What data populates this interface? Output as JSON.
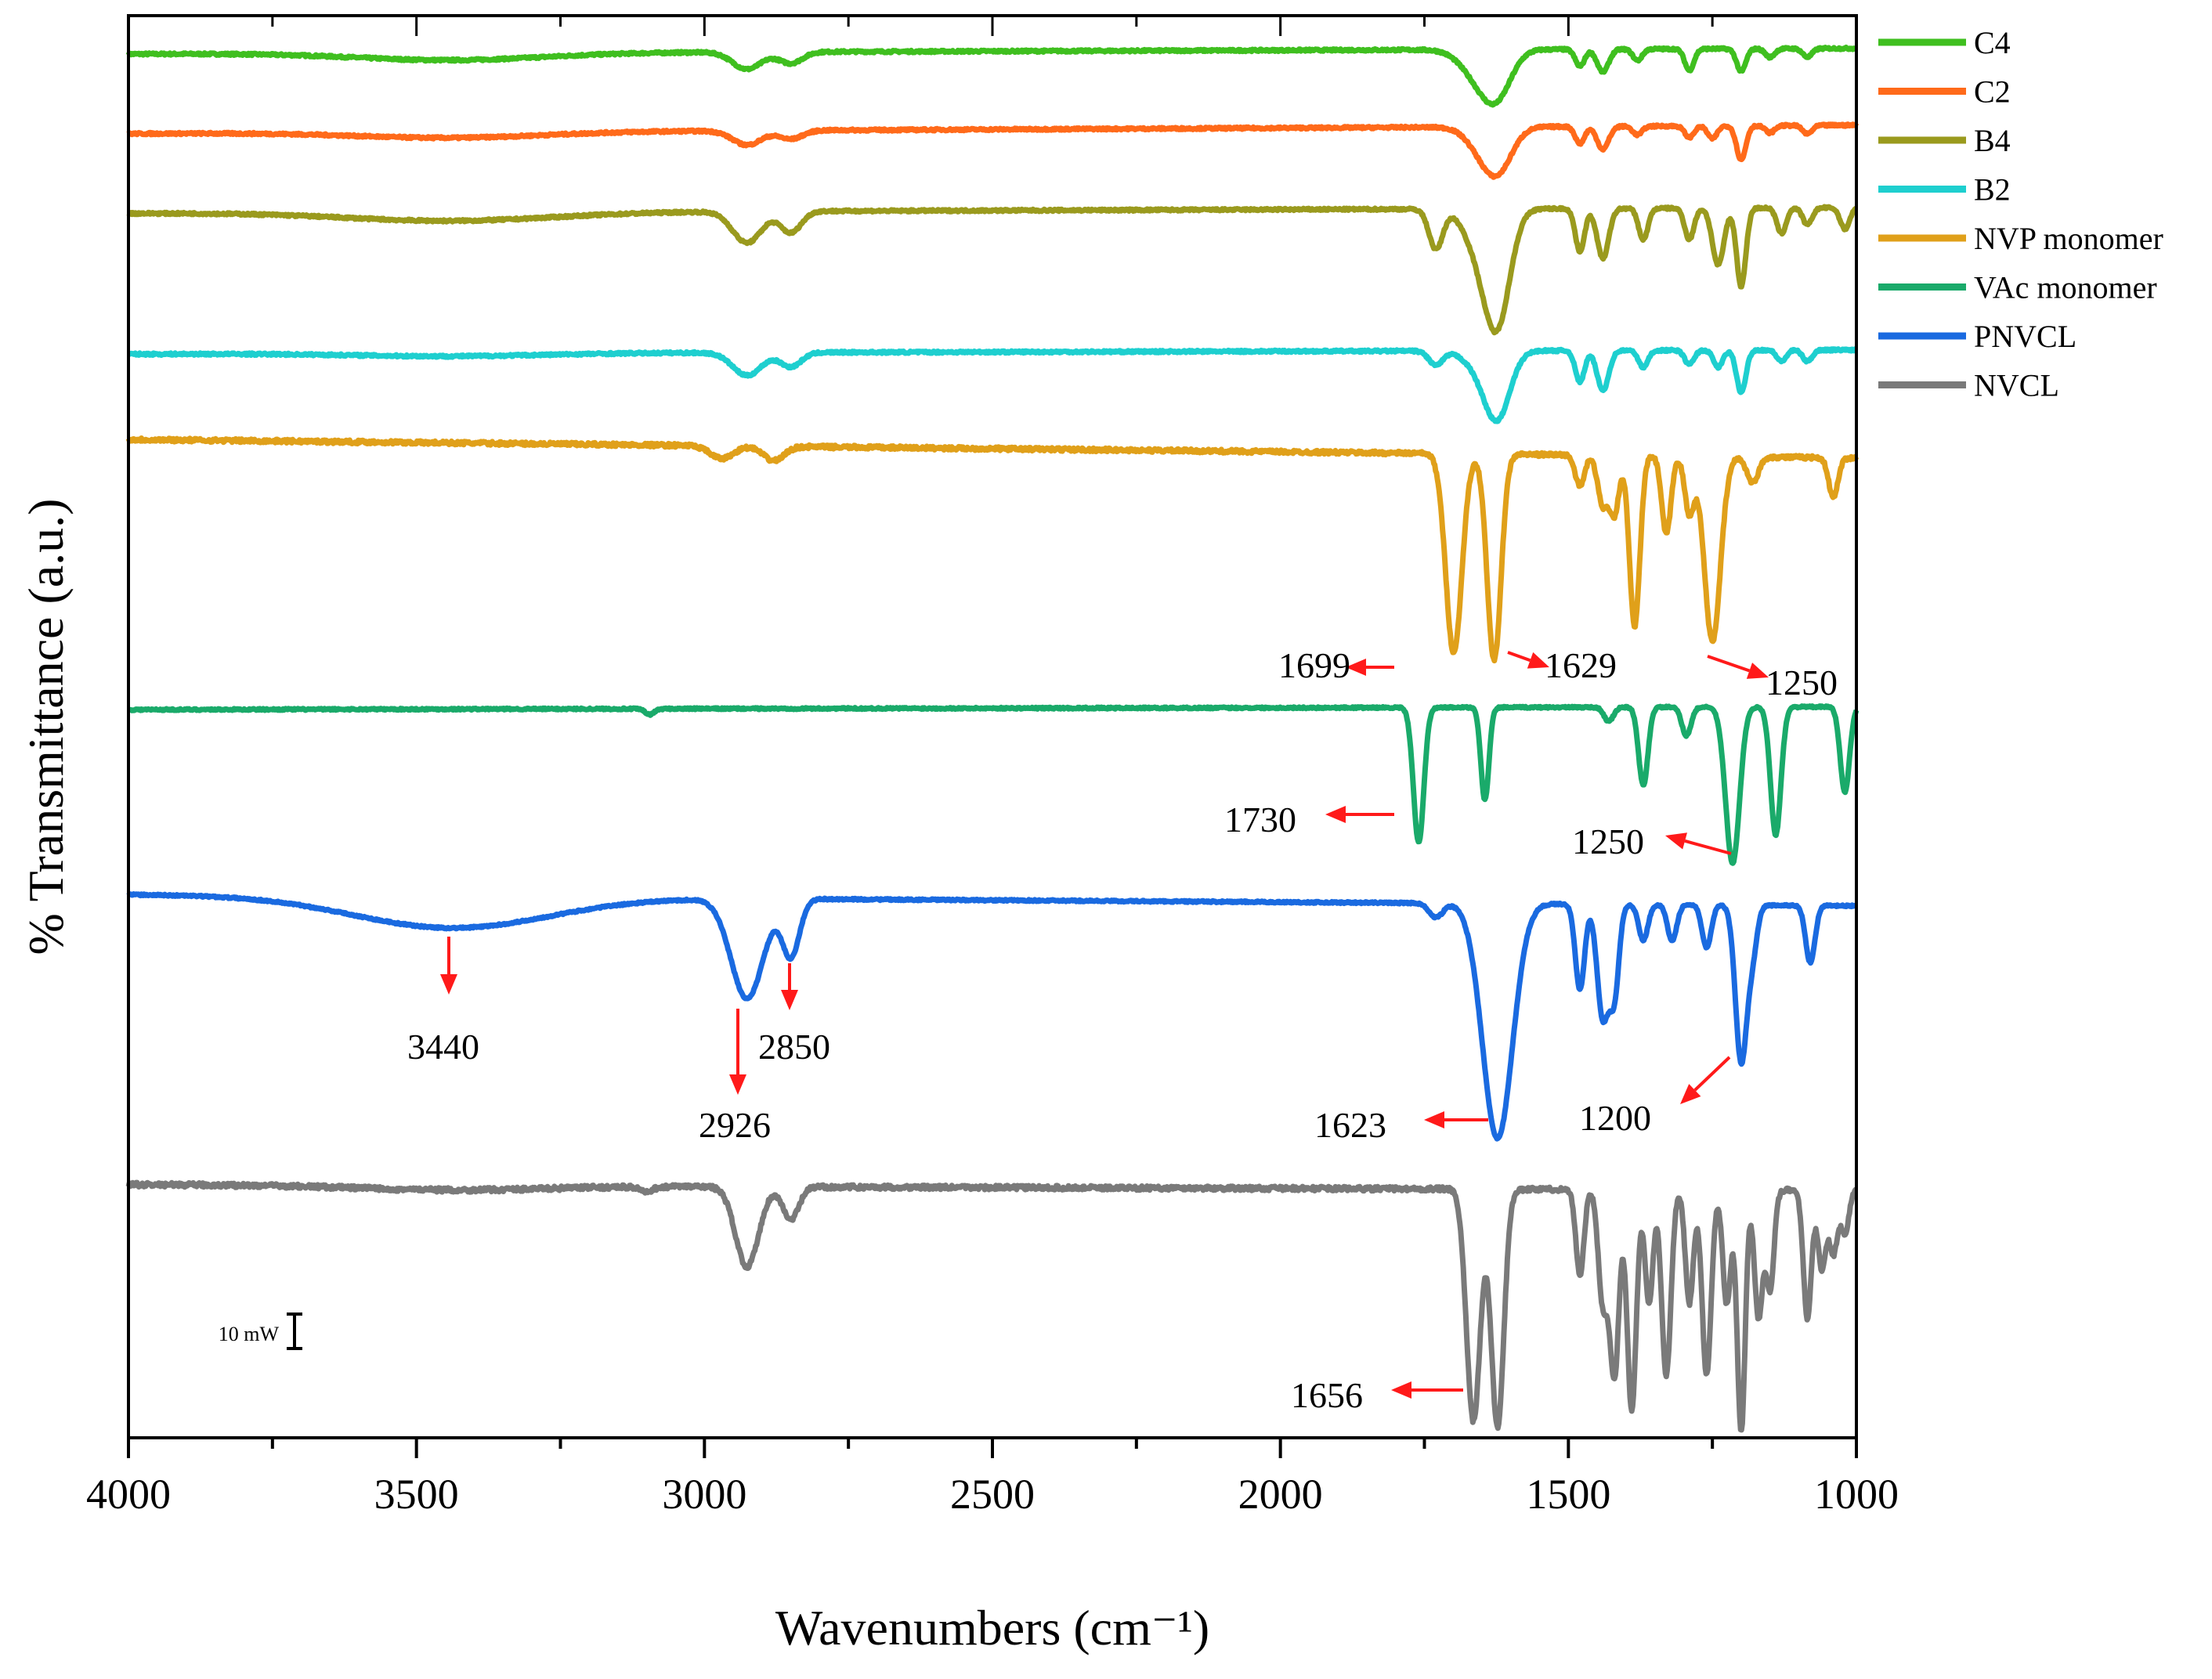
{
  "chart_data": {
    "type": "line",
    "title": "",
    "xlabel": "Wavenumbers (cm⁻¹)",
    "ylabel": "% Transmittance (a.u.)",
    "xlim": [
      4000,
      1000
    ],
    "x_ticks": [
      4000,
      3500,
      3000,
      2500,
      2000,
      1500,
      1000
    ],
    "x_tick_labels": [
      "4000",
      "3500",
      "3000",
      "2500",
      "2000",
      "1500",
      "1000"
    ],
    "ylim": [
      0,
      100
    ],
    "grid": false,
    "legend_position": "right, outside plot",
    "scale_bar_label": "10 mW",
    "series": [
      {
        "name": "C4",
        "color": "#3fbf1f",
        "baseline": 97.3,
        "slope": 0.4,
        "noise": 0.15,
        "peaks": [
          [
            3440,
            0.5,
            160
          ],
          [
            2926,
            1.2,
            25
          ],
          [
            2850,
            0.8,
            20
          ],
          [
            1656,
            1.8,
            30
          ],
          [
            1623,
            2.7,
            25
          ],
          [
            1480,
            1.2,
            8
          ],
          [
            1440,
            1.6,
            10
          ],
          [
            1380,
            0.8,
            8
          ],
          [
            1290,
            1.5,
            8
          ],
          [
            1200,
            1.6,
            8
          ],
          [
            1150,
            0.6,
            8
          ],
          [
            1085,
            0.6,
            8
          ]
        ]
      },
      {
        "name": "C2",
        "color": "#ff6a1a",
        "baseline": 91.7,
        "slope": 0.6,
        "noise": 0.15,
        "peaks": [
          [
            3440,
            0.4,
            160
          ],
          [
            2926,
            1.0,
            25
          ],
          [
            2850,
            0.6,
            20
          ],
          [
            1656,
            1.0,
            25
          ],
          [
            1623,
            3.0,
            25
          ],
          [
            1480,
            1.2,
            8
          ],
          [
            1440,
            1.6,
            10
          ],
          [
            1380,
            0.6,
            8
          ],
          [
            1290,
            0.8,
            8
          ],
          [
            1250,
            0.9,
            8
          ],
          [
            1200,
            2.4,
            8
          ],
          [
            1150,
            0.5,
            8
          ],
          [
            1085,
            0.6,
            8
          ]
        ]
      },
      {
        "name": "B4",
        "color": "#9a9a1e",
        "baseline": 86.1,
        "slope": 0.4,
        "noise": 0.15,
        "peaks": [
          [
            3440,
            0.6,
            180
          ],
          [
            2926,
            2.2,
            25
          ],
          [
            2850,
            1.5,
            18
          ],
          [
            1730,
            2.8,
            12
          ],
          [
            1656,
            2.5,
            25
          ],
          [
            1623,
            7.5,
            22
          ],
          [
            1480,
            3.0,
            8
          ],
          [
            1440,
            3.5,
            10
          ],
          [
            1370,
            2.2,
            8
          ],
          [
            1290,
            2.2,
            8
          ],
          [
            1240,
            4.0,
            10
          ],
          [
            1200,
            5.5,
            8
          ],
          [
            1130,
            1.8,
            8
          ],
          [
            1085,
            1.2,
            8
          ],
          [
            1020,
            1.5,
            8
          ]
        ]
      },
      {
        "name": "B2",
        "color": "#1ecfcf",
        "baseline": 76.2,
        "slope": 0.3,
        "noise": 0.15,
        "peaks": [
          [
            3440,
            0.2,
            160
          ],
          [
            2926,
            1.6,
            25
          ],
          [
            2850,
            1.0,
            18
          ],
          [
            1730,
            1.0,
            12
          ],
          [
            1656,
            1.0,
            25
          ],
          [
            1623,
            4.5,
            22
          ],
          [
            1480,
            2.2,
            8
          ],
          [
            1440,
            2.8,
            10
          ],
          [
            1370,
            1.2,
            8
          ],
          [
            1290,
            1.0,
            8
          ],
          [
            1240,
            1.2,
            8
          ],
          [
            1200,
            3.0,
            8
          ],
          [
            1130,
            0.8,
            8
          ],
          [
            1085,
            0.8,
            8
          ]
        ]
      },
      {
        "name": "NVP monomer",
        "color": "#e0a01a",
        "baseline": 70.2,
        "slope": -1.3,
        "noise": 0.25,
        "peaks": [
          [
            2970,
            0.9,
            20
          ],
          [
            2880,
            1.0,
            18
          ],
          [
            1699,
            14.0,
            14
          ],
          [
            1629,
            14.5,
            12
          ],
          [
            1480,
            2.2,
            8
          ],
          [
            1440,
            3.5,
            9
          ],
          [
            1420,
            4.0,
            8
          ],
          [
            1385,
            12.0,
            9
          ],
          [
            1330,
            5.5,
            8
          ],
          [
            1290,
            4.0,
            8
          ],
          [
            1250,
            13.0,
            14
          ],
          [
            1180,
            1.8,
            10
          ],
          [
            1040,
            2.8,
            8
          ]
        ]
      },
      {
        "name": "VAc monomer",
        "color": "#1aaa6a",
        "baseline": 51.2,
        "slope": 0.2,
        "noise": 0.12,
        "peaks": [
          [
            3095,
            0.4,
            8
          ],
          [
            1760,
            9.5,
            9
          ],
          [
            1645,
            6.5,
            7
          ],
          [
            1430,
            1.0,
            8
          ],
          [
            1370,
            5.5,
            8
          ],
          [
            1295,
            2.0,
            8
          ],
          [
            1215,
            11.0,
            12
          ],
          [
            1140,
            9.0,
            9
          ],
          [
            1020,
            6.0,
            8
          ]
        ]
      },
      {
        "name": "PNVCL",
        "color": "#1a6ae0",
        "baseline": 38.2,
        "slope": -0.8,
        "noise": 0.12,
        "peaks": [
          [
            3440,
            2.2,
            170
          ],
          [
            2926,
            7.0,
            28
          ],
          [
            2850,
            4.0,
            15
          ],
          [
            1730,
            1.0,
            12
          ],
          [
            1623,
            16.5,
            26
          ],
          [
            1480,
            6.0,
            8
          ],
          [
            1440,
            8.0,
            10
          ],
          [
            1420,
            6.0,
            8
          ],
          [
            1370,
            2.5,
            8
          ],
          [
            1320,
            2.5,
            8
          ],
          [
            1260,
            3.0,
            8
          ],
          [
            1200,
            11.0,
            10
          ],
          [
            1180,
            3.0,
            8
          ],
          [
            1080,
            4.0,
            8
          ]
        ]
      },
      {
        "name": "NVCL",
        "color": "#7a7a7a",
        "baseline": 17.8,
        "slope": -0.4,
        "noise": 0.3,
        "peaks": [
          [
            3440,
            0.3,
            160
          ],
          [
            3100,
            0.4,
            10
          ],
          [
            2926,
            5.6,
            20
          ],
          [
            2850,
            2.3,
            14
          ],
          [
            1665,
            16.3,
            12
          ],
          [
            1623,
            16.7,
            11
          ],
          [
            1480,
            6.0,
            7
          ],
          [
            1440,
            8.0,
            8
          ],
          [
            1420,
            13.0,
            8
          ],
          [
            1390,
            15.5,
            8
          ],
          [
            1360,
            8.0,
            7
          ],
          [
            1330,
            13.0,
            8
          ],
          [
            1290,
            8.0,
            7
          ],
          [
            1260,
            13.0,
            8
          ],
          [
            1225,
            8.0,
            7
          ],
          [
            1200,
            17.0,
            7
          ],
          [
            1170,
            9.0,
            7
          ],
          [
            1150,
            7.0,
            7
          ],
          [
            1085,
            9.0,
            7
          ],
          [
            1060,
            5.5,
            7
          ],
          [
            1040,
            4.5,
            7
          ],
          [
            1020,
            3.0,
            7
          ]
        ]
      }
    ],
    "annotations": [
      {
        "text": "1699",
        "series": "NVP monomer",
        "x": 1699
      },
      {
        "text": "1629",
        "series": "NVP monomer",
        "x": 1629
      },
      {
        "text": "1250",
        "series": "NVP monomer",
        "x": 1250
      },
      {
        "text": "1730",
        "series": "VAc monomer",
        "x": 1730
      },
      {
        "text": "1250",
        "series": "VAc monomer",
        "x": 1250
      },
      {
        "text": "3440",
        "series": "PNVCL",
        "x": 3440
      },
      {
        "text": "2926",
        "series": "PNVCL",
        "x": 2926
      },
      {
        "text": "2850",
        "series": "PNVCL",
        "x": 2850
      },
      {
        "text": "1623",
        "series": "PNVCL",
        "x": 1623
      },
      {
        "text": "1200",
        "series": "PNVCL",
        "x": 1200
      },
      {
        "text": "1656",
        "series": "NVCL",
        "x": 1656
      }
    ]
  }
}
